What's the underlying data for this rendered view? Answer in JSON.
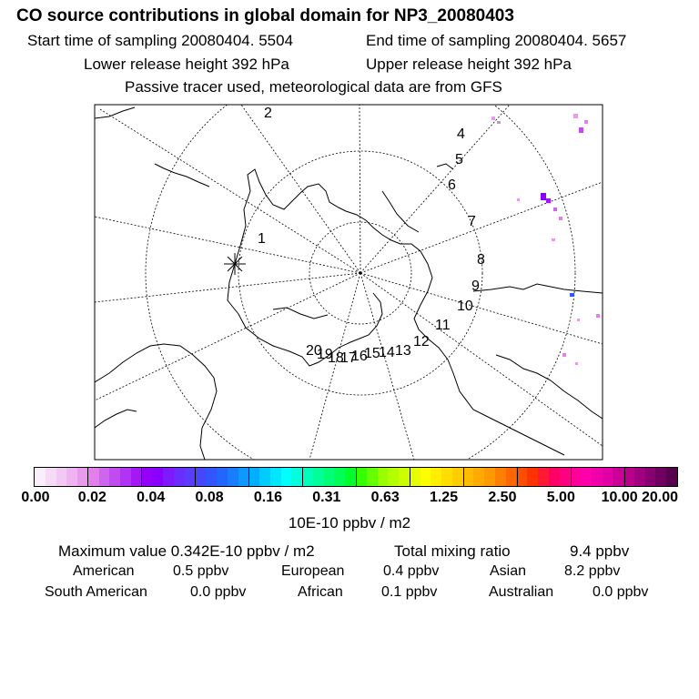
{
  "header": {
    "title": "CO  source contributions in global domain for NP3_20080403",
    "start_time": "Start time of sampling 20080404.  5504",
    "end_time": "End time of sampling 20080404.  5657",
    "lower_height": "Lower release height  392 hPa",
    "upper_height": "Upper release height  392 hPa",
    "note": "Passive tracer used, meteorological data are from GFS"
  },
  "map": {
    "track_labels": [
      "1",
      "2",
      "4",
      "5",
      "6",
      "7",
      "8",
      "9",
      "10",
      "11",
      "12",
      "13",
      "14",
      "15",
      "16",
      "17",
      "18",
      "19",
      "20"
    ],
    "projection": "polar-stereographic-north"
  },
  "colorbar": {
    "tick_labels": [
      "0.00",
      "0.02",
      "0.04",
      "0.08",
      "0.16",
      "0.31",
      "0.63",
      "1.25",
      "2.50",
      "5.00",
      "10.00",
      "20.00"
    ],
    "colors": [
      "#fbeefb",
      "#f6dbf7",
      "#f2c8f4",
      "#eeb3f0",
      "#e99aee",
      "#e27feb",
      "#cc66ee",
      "#c04cf0",
      "#b233f2",
      "#a318f5",
      "#9400f8",
      "#8800ff",
      "#7d1aff",
      "#6a2cff",
      "#5a3cff",
      "#4646ff",
      "#3355ff",
      "#2266ff",
      "#1a7cff",
      "#0e99ff",
      "#00b0ff",
      "#00ccff",
      "#00e6ff",
      "#00ffff",
      "#00ffdd",
      "#00ffbb",
      "#00ff99",
      "#00ff77",
      "#00ff55",
      "#00ff2a",
      "#33ff00",
      "#66ff00",
      "#99ff00",
      "#b2ff00",
      "#ccff00",
      "#e6ff00",
      "#ffff00",
      "#ffee00",
      "#ffdd00",
      "#ffcc00",
      "#ffbb00",
      "#ffaa00",
      "#ff9900",
      "#ff8000",
      "#ff6600",
      "#ff4d00",
      "#ff3300",
      "#ff1a33",
      "#ff0066",
      "#ff0080",
      "#ff0099",
      "#ff00aa",
      "#f000aa",
      "#e000a6",
      "#cc0099",
      "#b8008c",
      "#a00080",
      "#880070",
      "#700060",
      "#58004d"
    ],
    "units": "10E-10 ppbv / m2"
  },
  "stats": {
    "max_value": "Maximum value  0.342E-10 ppbv / m2",
    "total_mixing": "Total mixing ratio",
    "total_value": "9.4 ppbv",
    "american_label": "American",
    "american_value": "0.5 ppbv",
    "european_label": "European",
    "european_value": "0.4 ppbv",
    "asian_label": "Asian",
    "asian_value": "8.2 ppbv",
    "south_american_label": "South American",
    "south_american_value": "0.0 ppbv",
    "african_label": "African",
    "african_value": "0.1 ppbv",
    "australian_label": "Australian",
    "australian_value": "0.0 ppbv"
  }
}
